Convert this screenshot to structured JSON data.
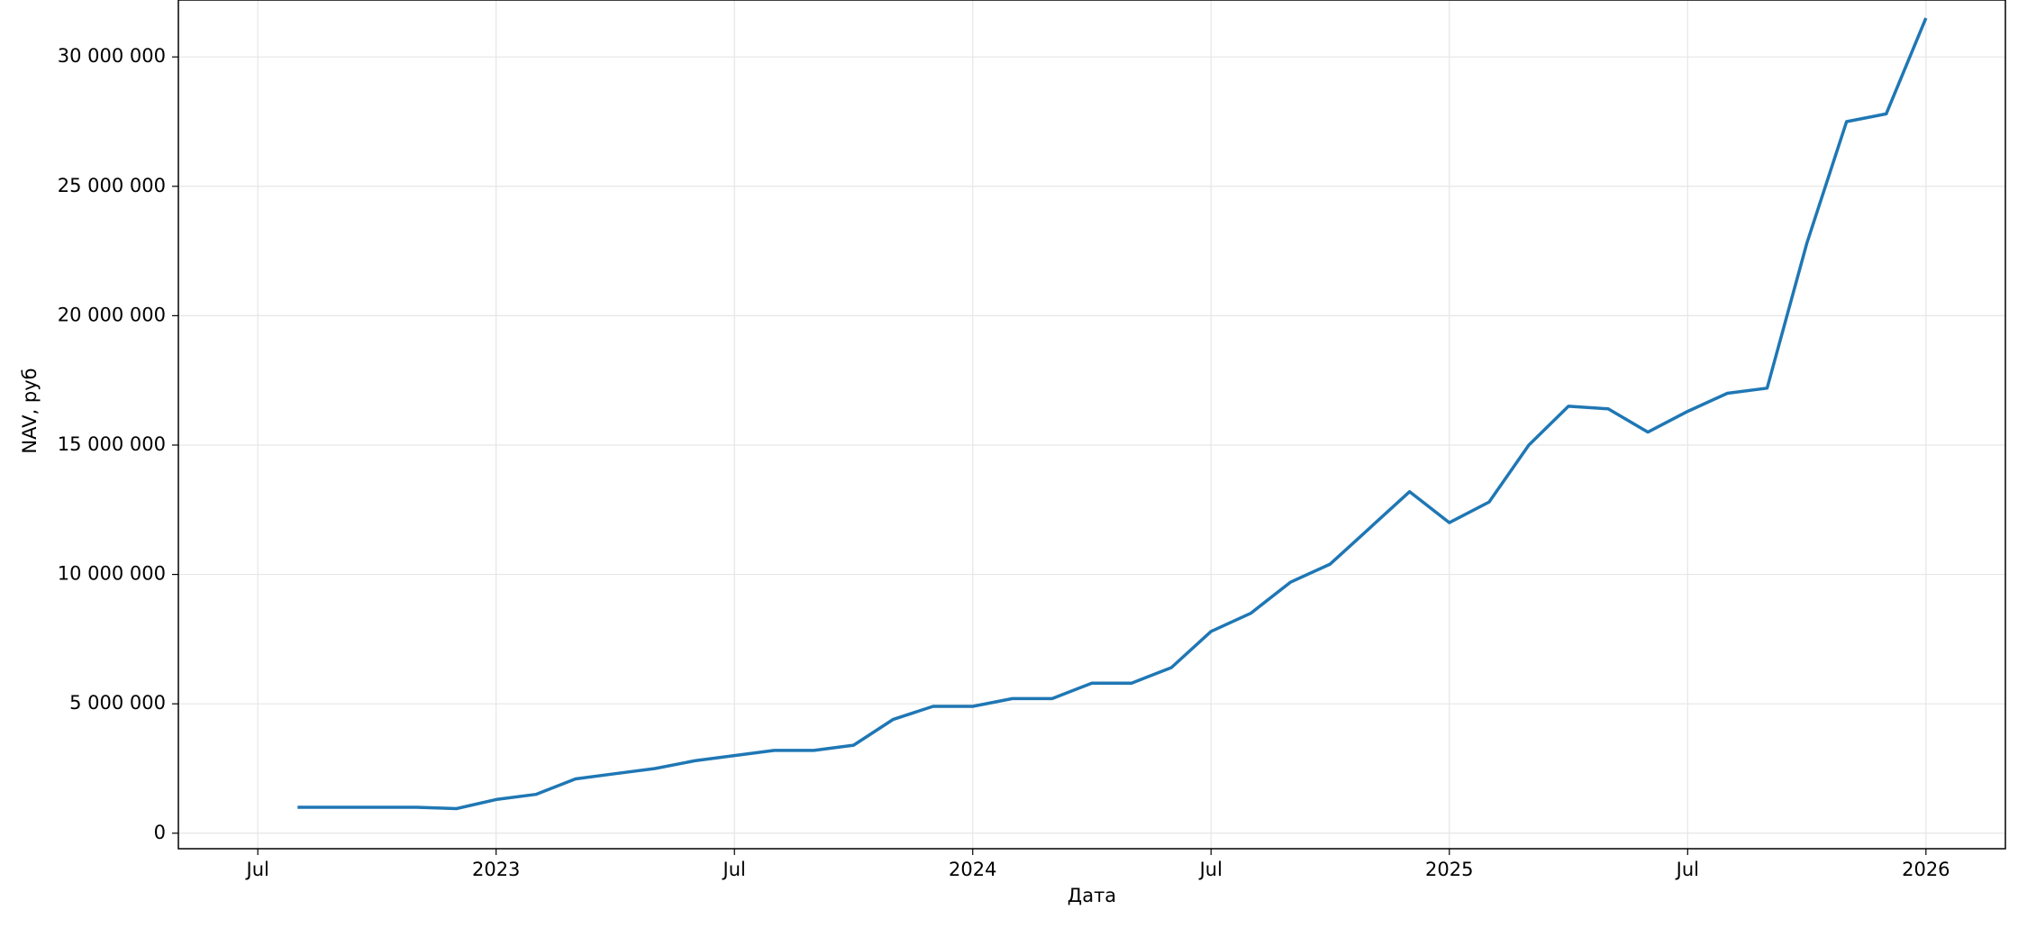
{
  "chart_data": {
    "type": "line",
    "x_label": "Дата",
    "y_label": "NAV, руб",
    "x": [
      "2022-08",
      "2022-09",
      "2022-10",
      "2022-11",
      "2022-12",
      "2023-01",
      "2023-02",
      "2023-03",
      "2023-04",
      "2023-05",
      "2023-06",
      "2023-07",
      "2023-08",
      "2023-09",
      "2023-10",
      "2023-11",
      "2023-12",
      "2024-01",
      "2024-02",
      "2024-03",
      "2024-04",
      "2024-05",
      "2024-06",
      "2024-07",
      "2024-08",
      "2024-09",
      "2024-10",
      "2024-11",
      "2024-12",
      "2025-01",
      "2025-02",
      "2025-03",
      "2025-04",
      "2025-05",
      "2025-06",
      "2025-07",
      "2025-08",
      "2025-09",
      "2025-10",
      "2025-11",
      "2025-12",
      "2026-01"
    ],
    "series": [
      {
        "name": "NAV",
        "color": "#1f77b4",
        "values": [
          1000000,
          1000000,
          1000000,
          1000000,
          950000,
          1300000,
          1500000,
          2100000,
          2300000,
          2500000,
          2800000,
          3000000,
          3200000,
          3200000,
          3400000,
          4400000,
          4900000,
          4900000,
          5200000,
          5200000,
          5800000,
          5800000,
          6400000,
          7800000,
          8500000,
          9700000,
          10400000,
          11800000,
          13200000,
          12000000,
          12800000,
          15000000,
          16500000,
          16400000,
          15500000,
          16300000,
          17000000,
          17200000,
          22800000,
          27500000,
          27800000,
          31500000
        ]
      }
    ],
    "xlim": [
      "2022-05",
      "2026-03"
    ],
    "xticks": [
      {
        "value": "2022-07",
        "label": "Jul"
      },
      {
        "value": "2023-01",
        "label": "2023"
      },
      {
        "value": "2023-07",
        "label": "Jul"
      },
      {
        "value": "2024-01",
        "label": "2024"
      },
      {
        "value": "2024-07",
        "label": "Jul"
      },
      {
        "value": "2025-01",
        "label": "2025"
      },
      {
        "value": "2025-07",
        "label": "Jul"
      },
      {
        "value": "2026-01",
        "label": "2026"
      }
    ],
    "ylim": [
      -600000,
      32200000
    ],
    "yticks": [
      0,
      {
        "value": 5000000,
        "label": "5 000 000"
      },
      {
        "value": 10000000,
        "label": "10 000 000"
      },
      {
        "value": 15000000,
        "label": "15 000 000"
      },
      {
        "value": 20000000,
        "label": "20 000 000"
      },
      {
        "value": 25000000,
        "label": "25 000 000"
      },
      {
        "value": 30000000,
        "label": "30 000 000"
      }
    ],
    "grid": true
  }
}
